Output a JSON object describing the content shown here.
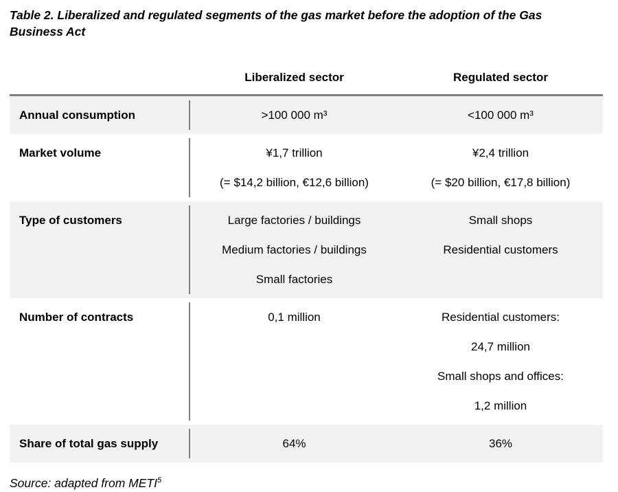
{
  "caption": {
    "line1": "Table 2. Liberalized and regulated segments of the gas market before the adoption of the Gas",
    "line2": "Business Act"
  },
  "columns": {
    "liberalized": "Liberalized sector",
    "regulated": "Regulated sector"
  },
  "rows": [
    {
      "label": "Annual consumption",
      "liberalized": [
        ">100 000 m³"
      ],
      "regulated": [
        "<100 000 m³"
      ]
    },
    {
      "label": "Market volume",
      "liberalized": [
        "¥1,7 trillion",
        "(= $14,2 billion, €12,6 billion)"
      ],
      "regulated": [
        "¥2,4 trillion",
        "(= $20 billion, €17,8 billion)"
      ]
    },
    {
      "label": "Type of customers",
      "liberalized": [
        "Large factories / buildings",
        "Medium factories / buildings",
        "Small factories"
      ],
      "regulated": [
        "Small shops",
        "Residential customers"
      ]
    },
    {
      "label": "Number of contracts",
      "liberalized": [
        "0,1 million"
      ],
      "regulated": [
        "Residential customers:",
        "24,7 million",
        "Small shops and offices:",
        "1,2 million"
      ]
    },
    {
      "label": "Share of total gas supply",
      "liberalized": [
        "64%"
      ],
      "regulated": [
        "36%"
      ]
    }
  ],
  "source": {
    "text": "Source: adapted from METI",
    "superscript": "5"
  },
  "colors": {
    "row_shading": "#f2f2f2",
    "table_border": "#7f7f7f",
    "text": "#000000"
  }
}
